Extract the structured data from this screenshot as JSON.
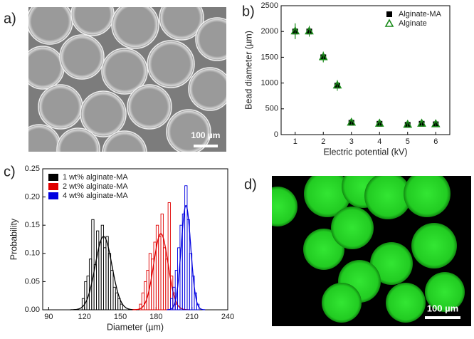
{
  "panels": {
    "a": "a)",
    "b": "b)",
    "c": "c)",
    "d": "d)"
  },
  "images": {
    "a_scale": "100 µm",
    "d_scale": "100 µm"
  },
  "chart_data": [
    {
      "type": "scatter",
      "x_label": "Electric potential (kV)",
      "y_label": "Bead diameter (µm)",
      "xlim": [
        0.5,
        6.5
      ],
      "xticks": [
        1,
        2,
        3,
        4,
        5,
        6
      ],
      "ylim": [
        0,
        2500
      ],
      "yticks": [
        0,
        500,
        1000,
        1500,
        2000,
        2500
      ],
      "legend": "top-right",
      "series": [
        {
          "name": "Alginate-MA",
          "color": "#000000",
          "marker": "square",
          "x": [
            1,
            1.5,
            2,
            2.5,
            3,
            4,
            5,
            5.5,
            6
          ],
          "values": [
            2000,
            2000,
            1500,
            950,
            230,
            210,
            190,
            210,
            200
          ],
          "errors": [
            150,
            100,
            100,
            100,
            50,
            50,
            50,
            50,
            50
          ]
        },
        {
          "name": "Alginate",
          "color": "#1a8a1a",
          "marker": "triangle",
          "x": [
            1,
            1.5,
            2,
            2.5,
            3,
            4,
            5,
            5.5,
            6
          ],
          "values": [
            2010,
            2010,
            1510,
            960,
            240,
            220,
            200,
            220,
            210
          ],
          "errors": [
            150,
            100,
            100,
            100,
            50,
            50,
            50,
            50,
            50
          ]
        }
      ]
    },
    {
      "type": "histogram",
      "x_label": "Diameter (µm)",
      "y_label": "Probability",
      "xlim": [
        85,
        240
      ],
      "xticks": [
        90,
        120,
        150,
        180,
        210,
        240
      ],
      "ylim": [
        0,
        0.25
      ],
      "yticks": [
        {
          "value": 0,
          "label": "0.00"
        },
        0.05,
        {
          "value": 0.1,
          "label": "0.10"
        },
        0.15,
        {
          "value": 0.2,
          "label": "0.20"
        },
        0.25
      ],
      "legend": "top-left",
      "series": [
        {
          "name": "1 wt% alginate-MA",
          "color": "#000000",
          "bins": [
            118,
            120,
            122,
            124,
            126,
            128,
            130,
            132,
            134,
            136,
            138,
            140,
            142,
            144,
            146,
            148,
            150,
            152
          ],
          "values": [
            0.02,
            0.05,
            0.06,
            0.09,
            0.16,
            0.08,
            0.14,
            0.12,
            0.15,
            0.11,
            0.13,
            0.1,
            0.07,
            0.04,
            0.03,
            0.02,
            0.01
          ],
          "fit": {
            "mean": 136,
            "sd": 7,
            "peak": 0.13
          }
        },
        {
          "name": "2 wt% alginate-MA",
          "color": "#e00000",
          "bins": [
            166,
            168,
            170,
            172,
            174,
            176,
            178,
            180,
            182,
            184,
            186,
            188,
            190,
            192,
            194,
            196,
            198
          ],
          "values": [
            0.01,
            0.03,
            0.05,
            0.07,
            0.1,
            0.09,
            0.12,
            0.15,
            0.13,
            0.17,
            0.11,
            0.09,
            0.19,
            0.06,
            0.03,
            0.01
          ],
          "fit": {
            "mean": 184,
            "sd": 6,
            "peak": 0.135
          }
        },
        {
          "name": "4 wt% alginate-MA",
          "color": "#0000e0",
          "bins": [
            192,
            194,
            196,
            198,
            200,
            202,
            204,
            206,
            208,
            210,
            212,
            214,
            216
          ],
          "values": [
            0.02,
            0.04,
            0.07,
            0.11,
            0.15,
            0.17,
            0.22,
            0.16,
            0.1,
            0.06,
            0.03,
            0.01
          ],
          "fit": {
            "mean": 205,
            "sd": 4,
            "peak": 0.185
          }
        }
      ]
    }
  ]
}
